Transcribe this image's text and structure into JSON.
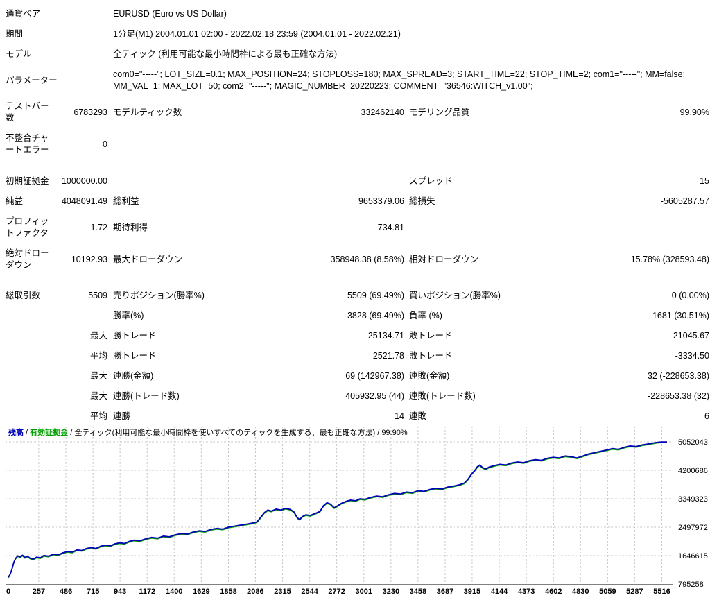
{
  "r": {
    "pair": {
      "label": "通貨ペア",
      "value": "EURUSD (Euro vs US Dollar)"
    },
    "period": {
      "label": "期間",
      "value": "1分足(M1) 2004.01.01 02:00 - 2022.02.18 23:59 (2004.01.01 - 2022.02.21)"
    },
    "model": {
      "label": "モデル",
      "value": "全ティック (利用可能な最小時間枠による最も正確な方法)"
    },
    "params": {
      "label": "パラメーター",
      "value": "com0=\"-----\"; LOT_SIZE=0.1; MAX_POSITION=24; STOPLOSS=180; MAX_SPREAD=3; START_TIME=22; STOP_TIME=2; com1=\"-----\"; MM=false; MM_VAL=1; MAX_LOT=50; com2=\"-----\"; MAGIC_NUMBER=20220223; COMMENT=\"36546:WITCH_v1.00\";"
    },
    "bars": {
      "label": "テストバー数",
      "value": "6783293"
    },
    "ticks": {
      "label": "モデルティック数",
      "value": "332462140"
    },
    "quality": {
      "label": "モデリング品質",
      "value": "99.90%"
    },
    "mismatch": {
      "label": "不整合チャートエラー",
      "value": "0"
    },
    "deposit": {
      "label": "初期証拠金",
      "value": "1000000.00"
    },
    "spread": {
      "label": "スプレッド",
      "value": "15"
    },
    "net": {
      "label": "純益",
      "value": "4048091.49"
    },
    "gross_profit": {
      "label": "総利益",
      "value": "9653379.06"
    },
    "gross_loss": {
      "label": "総損失",
      "value": "-5605287.57"
    },
    "profit_factor": {
      "label": "プロフィットファクタ",
      "value": "1.72"
    },
    "expected_payoff": {
      "label": "期待利得",
      "value": "734.81"
    },
    "abs_dd": {
      "label": "絶対ドローダウン",
      "value": "10192.93"
    },
    "max_dd": {
      "label": "最大ドローダウン",
      "value": "358948.38 (8.58%)"
    },
    "rel_dd": {
      "label": "相対ドローダウン",
      "value": "15.78% (328593.48)"
    },
    "total_trades": {
      "label": "総取引数",
      "value": "5509"
    },
    "short_pos": {
      "label": "売りポジション(勝率%)",
      "value": "5509 (69.49%)"
    },
    "long_pos": {
      "label": "買いポジション(勝率%)",
      "value": "0 (0.00%)"
    },
    "win_trades": {
      "label": "勝率(%)",
      "value": "3828 (69.49%)"
    },
    "loss_trades": {
      "label": "負率 (%)",
      "value": "1681 (30.51%)"
    },
    "max_label": "最大",
    "avg_label": "平均",
    "largest_win": {
      "label": "勝トレード",
      "value": "25134.71"
    },
    "largest_loss": {
      "label": "敗トレード",
      "value": "-21045.67"
    },
    "avg_win": {
      "label": "勝トレード",
      "value": "2521.78"
    },
    "avg_loss": {
      "label": "敗トレード",
      "value": "-3334.50"
    },
    "max_consec_win_money": {
      "label": "連勝(金額)",
      "value": "69 (142967.38)"
    },
    "max_consec_loss_money": {
      "label": "連敗(金額)",
      "value": "32 (-228653.38)"
    },
    "max_consec_win_count": {
      "label": "連勝(トレード数)",
      "value": "405932.95 (44)"
    },
    "max_consec_loss_count": {
      "label": "連敗(トレード数)",
      "value": "-228653.38 (32)"
    },
    "avg_consec_win": {
      "label": "連勝",
      "value": "14"
    },
    "avg_consec_loss": {
      "label": "連敗",
      "value": "6"
    }
  },
  "chart": {
    "legend": {
      "balance_label": "残高",
      "equity_label": "有効証拠金",
      "sep": " / ",
      "model_text": "全ティック(利用可能な最小時間枠を使いすべてのティックを生成する、最も正確な方法)",
      "quality": "99.90%"
    },
    "colors": {
      "balance": "#0000b8",
      "equity": "#00a000",
      "grid": "#c8c8c8",
      "border": "#808080"
    }
  },
  "chart_data": {
    "type": "line",
    "title": "残高 / 有効証拠金 / 全ティック(利用可能な最小時間枠を使いすべてのティックを生成する、最も正確な方法) / 99.90%",
    "xlim": [
      0,
      5560
    ],
    "ylim": [
      795258,
      5052043
    ],
    "x_ticks": [
      0,
      257,
      486,
      715,
      943,
      1172,
      1400,
      1629,
      1858,
      2086,
      2315,
      2544,
      2772,
      3001,
      3230,
      3458,
      3687,
      3915,
      4144,
      4373,
      4602,
      4830,
      5059,
      5287,
      5516
    ],
    "y_ticks": [
      5052043,
      4200686,
      3349323,
      2497972,
      1646615,
      795258
    ],
    "grid": true,
    "legend_position": "top-left",
    "series": [
      {
        "name": "残高",
        "color": "#0000b8",
        "points": [
          [
            0,
            1000000
          ],
          [
            15,
            1090000
          ],
          [
            30,
            1230000
          ],
          [
            45,
            1430000
          ],
          [
            60,
            1560000
          ],
          [
            80,
            1640000
          ],
          [
            100,
            1610000
          ],
          [
            120,
            1660000
          ],
          [
            140,
            1590000
          ],
          [
            160,
            1630000
          ],
          [
            185,
            1570000
          ],
          [
            210,
            1540000
          ],
          [
            240,
            1600000
          ],
          [
            270,
            1580000
          ],
          [
            300,
            1650000
          ],
          [
            340,
            1630000
          ],
          [
            380,
            1690000
          ],
          [
            420,
            1670000
          ],
          [
            460,
            1730000
          ],
          [
            500,
            1770000
          ],
          [
            540,
            1750000
          ],
          [
            580,
            1820000
          ],
          [
            620,
            1800000
          ],
          [
            660,
            1860000
          ],
          [
            700,
            1890000
          ],
          [
            740,
            1860000
          ],
          [
            780,
            1930000
          ],
          [
            820,
            1960000
          ],
          [
            860,
            1940000
          ],
          [
            900,
            2000000
          ],
          [
            940,
            2030000
          ],
          [
            980,
            2010000
          ],
          [
            1020,
            2070000
          ],
          [
            1060,
            2110000
          ],
          [
            1110,
            2090000
          ],
          [
            1160,
            2150000
          ],
          [
            1210,
            2190000
          ],
          [
            1260,
            2170000
          ],
          [
            1310,
            2230000
          ],
          [
            1360,
            2210000
          ],
          [
            1410,
            2270000
          ],
          [
            1460,
            2310000
          ],
          [
            1510,
            2290000
          ],
          [
            1560,
            2350000
          ],
          [
            1610,
            2390000
          ],
          [
            1660,
            2370000
          ],
          [
            1710,
            2430000
          ],
          [
            1760,
            2460000
          ],
          [
            1810,
            2440000
          ],
          [
            1860,
            2500000
          ],
          [
            1910,
            2530000
          ],
          [
            1960,
            2560000
          ],
          [
            2010,
            2590000
          ],
          [
            2060,
            2620000
          ],
          [
            2100,
            2660000
          ],
          [
            2130,
            2790000
          ],
          [
            2160,
            2930000
          ],
          [
            2190,
            3010000
          ],
          [
            2220,
            2980000
          ],
          [
            2260,
            3040000
          ],
          [
            2300,
            3010000
          ],
          [
            2340,
            3060000
          ],
          [
            2380,
            3030000
          ],
          [
            2410,
            2960000
          ],
          [
            2440,
            2780000
          ],
          [
            2460,
            2730000
          ],
          [
            2480,
            2810000
          ],
          [
            2510,
            2870000
          ],
          [
            2550,
            2850000
          ],
          [
            2590,
            2910000
          ],
          [
            2630,
            2970000
          ],
          [
            2660,
            3140000
          ],
          [
            2690,
            3230000
          ],
          [
            2720,
            3190000
          ],
          [
            2750,
            3080000
          ],
          [
            2780,
            3140000
          ],
          [
            2810,
            3210000
          ],
          [
            2850,
            3270000
          ],
          [
            2890,
            3310000
          ],
          [
            2930,
            3290000
          ],
          [
            2970,
            3350000
          ],
          [
            3010,
            3330000
          ],
          [
            3060,
            3390000
          ],
          [
            3110,
            3430000
          ],
          [
            3160,
            3410000
          ],
          [
            3210,
            3470000
          ],
          [
            3260,
            3510000
          ],
          [
            3310,
            3490000
          ],
          [
            3360,
            3550000
          ],
          [
            3410,
            3530000
          ],
          [
            3460,
            3590000
          ],
          [
            3510,
            3570000
          ],
          [
            3560,
            3630000
          ],
          [
            3610,
            3660000
          ],
          [
            3660,
            3640000
          ],
          [
            3710,
            3700000
          ],
          [
            3760,
            3730000
          ],
          [
            3810,
            3770000
          ],
          [
            3850,
            3820000
          ],
          [
            3880,
            3930000
          ],
          [
            3910,
            4090000
          ],
          [
            3940,
            4210000
          ],
          [
            3960,
            4310000
          ],
          [
            3980,
            4360000
          ],
          [
            4000,
            4290000
          ],
          [
            4030,
            4240000
          ],
          [
            4060,
            4300000
          ],
          [
            4100,
            4340000
          ],
          [
            4150,
            4380000
          ],
          [
            4200,
            4360000
          ],
          [
            4250,
            4420000
          ],
          [
            4300,
            4450000
          ],
          [
            4350,
            4430000
          ],
          [
            4400,
            4490000
          ],
          [
            4450,
            4520000
          ],
          [
            4500,
            4500000
          ],
          [
            4550,
            4560000
          ],
          [
            4600,
            4590000
          ],
          [
            4650,
            4570000
          ],
          [
            4700,
            4630000
          ],
          [
            4750,
            4610000
          ],
          [
            4800,
            4570000
          ],
          [
            4850,
            4630000
          ],
          [
            4900,
            4690000
          ],
          [
            4950,
            4730000
          ],
          [
            5000,
            4770000
          ],
          [
            5050,
            4810000
          ],
          [
            5100,
            4850000
          ],
          [
            5150,
            4830000
          ],
          [
            5200,
            4890000
          ],
          [
            5250,
            4930000
          ],
          [
            5300,
            4910000
          ],
          [
            5350,
            4960000
          ],
          [
            5400,
            4990000
          ],
          [
            5450,
            5020000
          ],
          [
            5480,
            5040000
          ],
          [
            5509,
            5048091.49
          ]
        ]
      },
      {
        "name": "有効証拠金",
        "color": "#00a000",
        "offset_from_balance": -25000
      }
    ]
  }
}
